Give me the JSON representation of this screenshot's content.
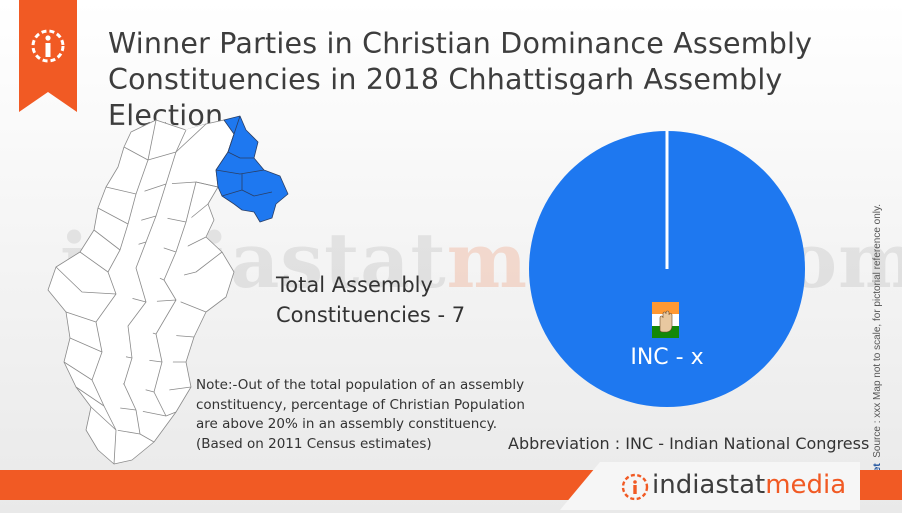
{
  "header": {
    "title_line1": "Winner Parties in Christian Dominance Assembly",
    "title_line2": "Constituencies in 2018 Chhattisgarh Assembly Election",
    "info_icon": "info-icon"
  },
  "map": {
    "highlight_color": "#1e78f0",
    "base_color": "#ffffff",
    "border_color": "#8a8a8a"
  },
  "watermark": {
    "part1": "indiastat",
    "part2": "media",
    "part3": ".com"
  },
  "summary": {
    "line1": "Total Assembly",
    "line2": "Constituencies - 7"
  },
  "note": {
    "line1": "Note:-Out of the total population of an assembly",
    "line2": "constituency, percentage of Christian Population",
    "line3": "are above 20% in an assembly constituency.",
    "line4": "(Based on 2011 Census estimates)"
  },
  "chart_data": {
    "type": "pie",
    "slices": [
      {
        "label": "INC - x",
        "value": 7,
        "color": "#1e78f0"
      }
    ]
  },
  "abbreviation": "Abbreviation : INC - Indian National Congress",
  "source": {
    "brand": "Datanet",
    "text": "Source : xxx  Map not to scale, for pictorial reference only."
  },
  "footer": {
    "brand_part1": "indiastat",
    "brand_part2": "media",
    "accent": "#f15a24"
  }
}
